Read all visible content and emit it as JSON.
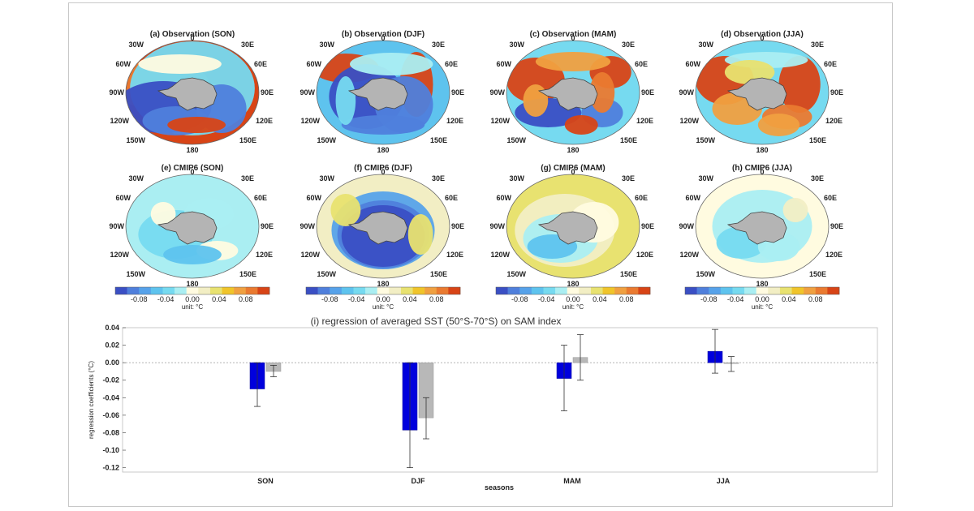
{
  "maps": {
    "panels": [
      {
        "title": "(a) Observation (SON)",
        "pattern": "obs_son"
      },
      {
        "title": "(b) Observation (DJF)",
        "pattern": "obs_djf"
      },
      {
        "title": "(c) Observation (MAM)",
        "pattern": "obs_mam"
      },
      {
        "title": "(d) Observation (JJA)",
        "pattern": "obs_jja"
      },
      {
        "title": "(e) CMIP6 (SON)",
        "pattern": "cmip_son"
      },
      {
        "title": "(f) CMIP6 (DJF)",
        "pattern": "cmip_djf"
      },
      {
        "title": "(g) CMIP6 (MAM)",
        "pattern": "cmip_mam"
      },
      {
        "title": "(h) CMIP6 (JJA)",
        "pattern": "cmip_jja"
      }
    ],
    "lon_labels": [
      "0",
      "30W",
      "30E",
      "60W",
      "60E",
      "90W",
      "90E",
      "120W",
      "120E",
      "150W",
      "150E",
      "180"
    ],
    "colorbar": {
      "ticks": [
        "-0.08",
        "-0.04",
        "0.00",
        "0.04",
        "0.08"
      ],
      "unit": "unit: °C",
      "colors": [
        "#3a4fc4",
        "#4f7fdc",
        "#56a2ea",
        "#5ec3ee",
        "#76daf0",
        "#aaeef2",
        "#fffbe0",
        "#f2eec4",
        "#e8e270",
        "#f0c42a",
        "#f0a040",
        "#ea7a30",
        "#d84416"
      ]
    }
  },
  "chart_data": {
    "type": "bar",
    "title": "(i) regression of averaged SST (50°S-70°S) on SAM index",
    "xlabel": "seasons",
    "ylabel": "regression coefficients (°C)",
    "categories": [
      "SON",
      "DJF",
      "MAM",
      "JJA"
    ],
    "ylim": [
      -0.125,
      0.04
    ],
    "yticks": [
      "0.04",
      "0.02",
      "0.00",
      "-0.02",
      "-0.04",
      "-0.06",
      "-0.08",
      "-0.10",
      "-0.12"
    ],
    "ytick_values": [
      0.04,
      0.02,
      0.0,
      -0.02,
      -0.04,
      -0.06,
      -0.08,
      -0.1,
      -0.12
    ],
    "series": [
      {
        "color": "#0000dd",
        "values": [
          -0.03,
          -0.077,
          -0.018,
          0.013
        ],
        "err_low": [
          -0.05,
          -0.12,
          -0.055,
          -0.012
        ],
        "err_high": [
          0.0,
          0.0,
          0.02,
          0.038
        ]
      },
      {
        "color": "#b8b8b8",
        "values": [
          -0.01,
          -0.063,
          0.006,
          0.0
        ],
        "err_low": [
          -0.016,
          -0.087,
          -0.02,
          -0.01
        ],
        "err_high": [
          -0.003,
          -0.04,
          0.032,
          0.007
        ]
      }
    ],
    "grid": false
  }
}
